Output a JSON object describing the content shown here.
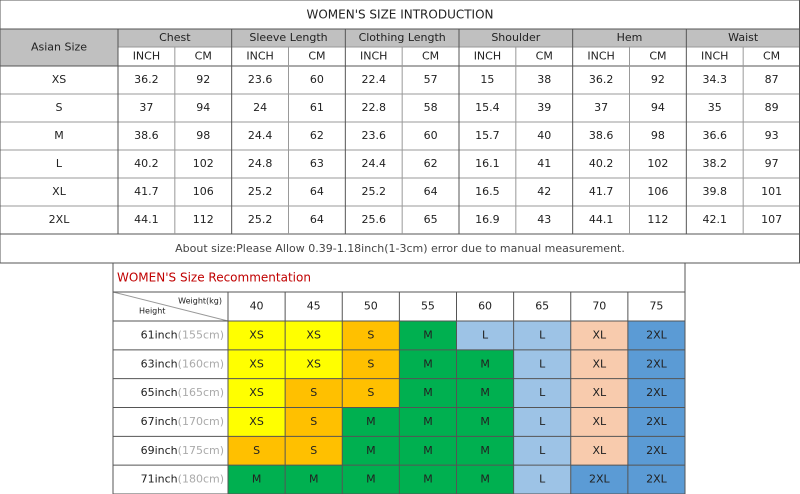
{
  "title": "WOMEN'S SIZE INTRODUCTION",
  "size_table": {
    "header": "Asian Size",
    "groups": [
      "Chest",
      "Sleeve Length",
      "Clothing Length",
      "Shoulder",
      "Hem",
      "Waist"
    ],
    "units": [
      "INCH",
      "CM"
    ],
    "rows": [
      [
        "XS",
        36.2,
        92,
        23.6,
        60,
        22.4,
        57,
        15,
        38,
        36.2,
        92,
        34.3,
        87
      ],
      [
        "S",
        37,
        94,
        24,
        61,
        22.8,
        58,
        15.4,
        39,
        37,
        94,
        35,
        89
      ],
      [
        "M",
        38.6,
        98,
        24.4,
        62,
        23.6,
        60,
        15.7,
        40,
        38.6,
        98,
        36.6,
        93
      ],
      [
        "L",
        40.2,
        102,
        24.8,
        63,
        24.4,
        62,
        16.1,
        41,
        40.2,
        102,
        38.2,
        97
      ],
      [
        "XL",
        41.7,
        106,
        25.2,
        64,
        25.2,
        64,
        16.5,
        42,
        41.7,
        106,
        39.8,
        101
      ],
      [
        "2XL",
        44.1,
        112,
        25.2,
        64,
        25.6,
        65,
        16.9,
        43,
        44.1,
        112,
        42.1,
        107
      ]
    ]
  },
  "note": "About size:Please Allow 0.39-1.18inch(1-3cm) error due to manual measurement.",
  "recommendation": {
    "title": "WOMEN'S Size Recommentation",
    "weight_label": "Weight(kg)",
    "height_label": "Height",
    "weights": [
      40,
      45,
      50,
      55,
      60,
      65,
      70,
      75
    ],
    "rows": [
      {
        "inch": "61inch",
        "cm": "(155cm)",
        "sizes": [
          "XS",
          "XS",
          "S",
          "M",
          "L",
          "L",
          "XL",
          "2XL"
        ]
      },
      {
        "inch": "63inch",
        "cm": "(160cm)",
        "sizes": [
          "XS",
          "XS",
          "S",
          "M",
          "M",
          "L",
          "XL",
          "2XL"
        ]
      },
      {
        "inch": "65inch",
        "cm": "(165cm)",
        "sizes": [
          "XS",
          "S",
          "S",
          "M",
          "M",
          "L",
          "XL",
          "2XL"
        ]
      },
      {
        "inch": "67inch",
        "cm": "(170cm)",
        "sizes": [
          "XS",
          "S",
          "M",
          "M",
          "M",
          "L",
          "XL",
          "2XL"
        ]
      },
      {
        "inch": "69inch",
        "cm": "(175cm)",
        "sizes": [
          "S",
          "S",
          "M",
          "M",
          "M",
          "L",
          "XL",
          "2XL"
        ]
      },
      {
        "inch": "71inch",
        "cm": "(180cm)",
        "sizes": [
          "M",
          "M",
          "M",
          "M",
          "M",
          "L",
          "2XL",
          "2XL"
        ]
      }
    ],
    "size_colors": {
      "XS": "#ffff00",
      "S": "#ffc000",
      "M": "#00b050",
      "L": "#9dc3e6",
      "XL": "#f8cbad",
      "2XL": "#5b9bd5"
    }
  }
}
